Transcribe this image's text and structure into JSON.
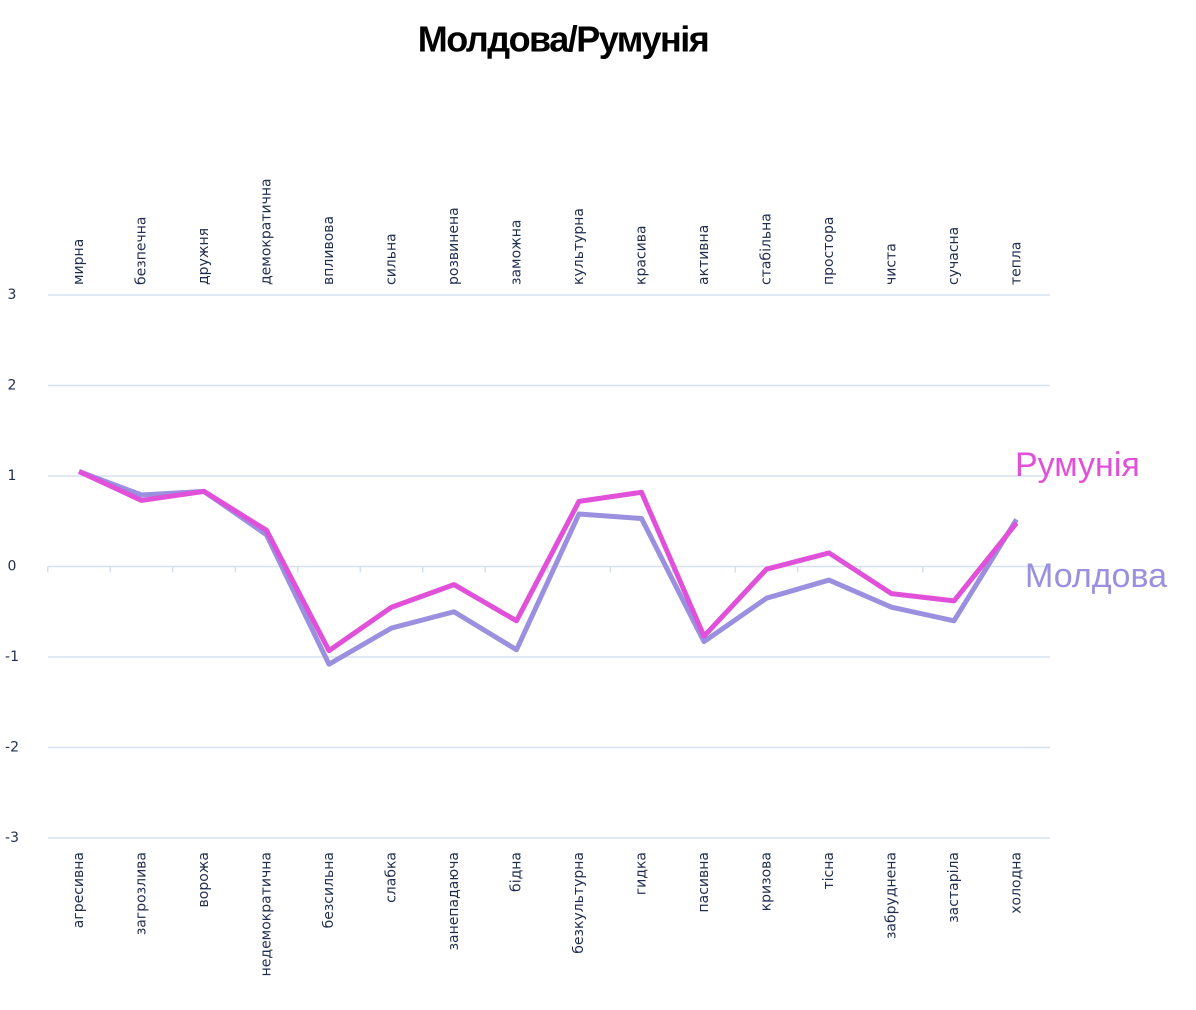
{
  "chart_data": {
    "type": "line",
    "title": "Молдова/Румунія",
    "categories": [
      "агресивна",
      "загрозлива",
      "ворожа",
      "недемократична",
      "безсильна",
      "слабка",
      "занепадаюча",
      "бідна",
      "безкультурна",
      "гидка",
      "пасивна",
      "кризова",
      "тісна",
      "забруднена",
      "застаріла",
      "холодна"
    ],
    "categories_top": [
      "мирна",
      "безпечна",
      "дружня",
      "демократична",
      "впливова",
      "сильна",
      "розвинена",
      "заможна",
      "культурна",
      "красива",
      "активна",
      "стабільна",
      "простора",
      "чиста",
      "сучасна",
      "тепла"
    ],
    "series": [
      {
        "name": "Молдова",
        "color": "#9b8fe0",
        "values": [
          1.05,
          0.79,
          0.83,
          0.35,
          -1.08,
          -0.68,
          -0.5,
          -0.92,
          0.58,
          0.53,
          -0.83,
          -0.35,
          -0.15,
          -0.45,
          -0.6,
          0.52
        ]
      },
      {
        "name": "Румунія",
        "color": "#e050d8",
        "values": [
          1.05,
          0.73,
          0.83,
          0.4,
          -0.93,
          -0.45,
          -0.2,
          -0.6,
          0.72,
          0.82,
          -0.77,
          -0.03,
          0.15,
          -0.3,
          -0.38,
          0.48
        ]
      }
    ],
    "ylim": [
      -3,
      3
    ],
    "yticks": [
      -3,
      -2,
      -1,
      0,
      1,
      2,
      3
    ],
    "grid": true
  }
}
